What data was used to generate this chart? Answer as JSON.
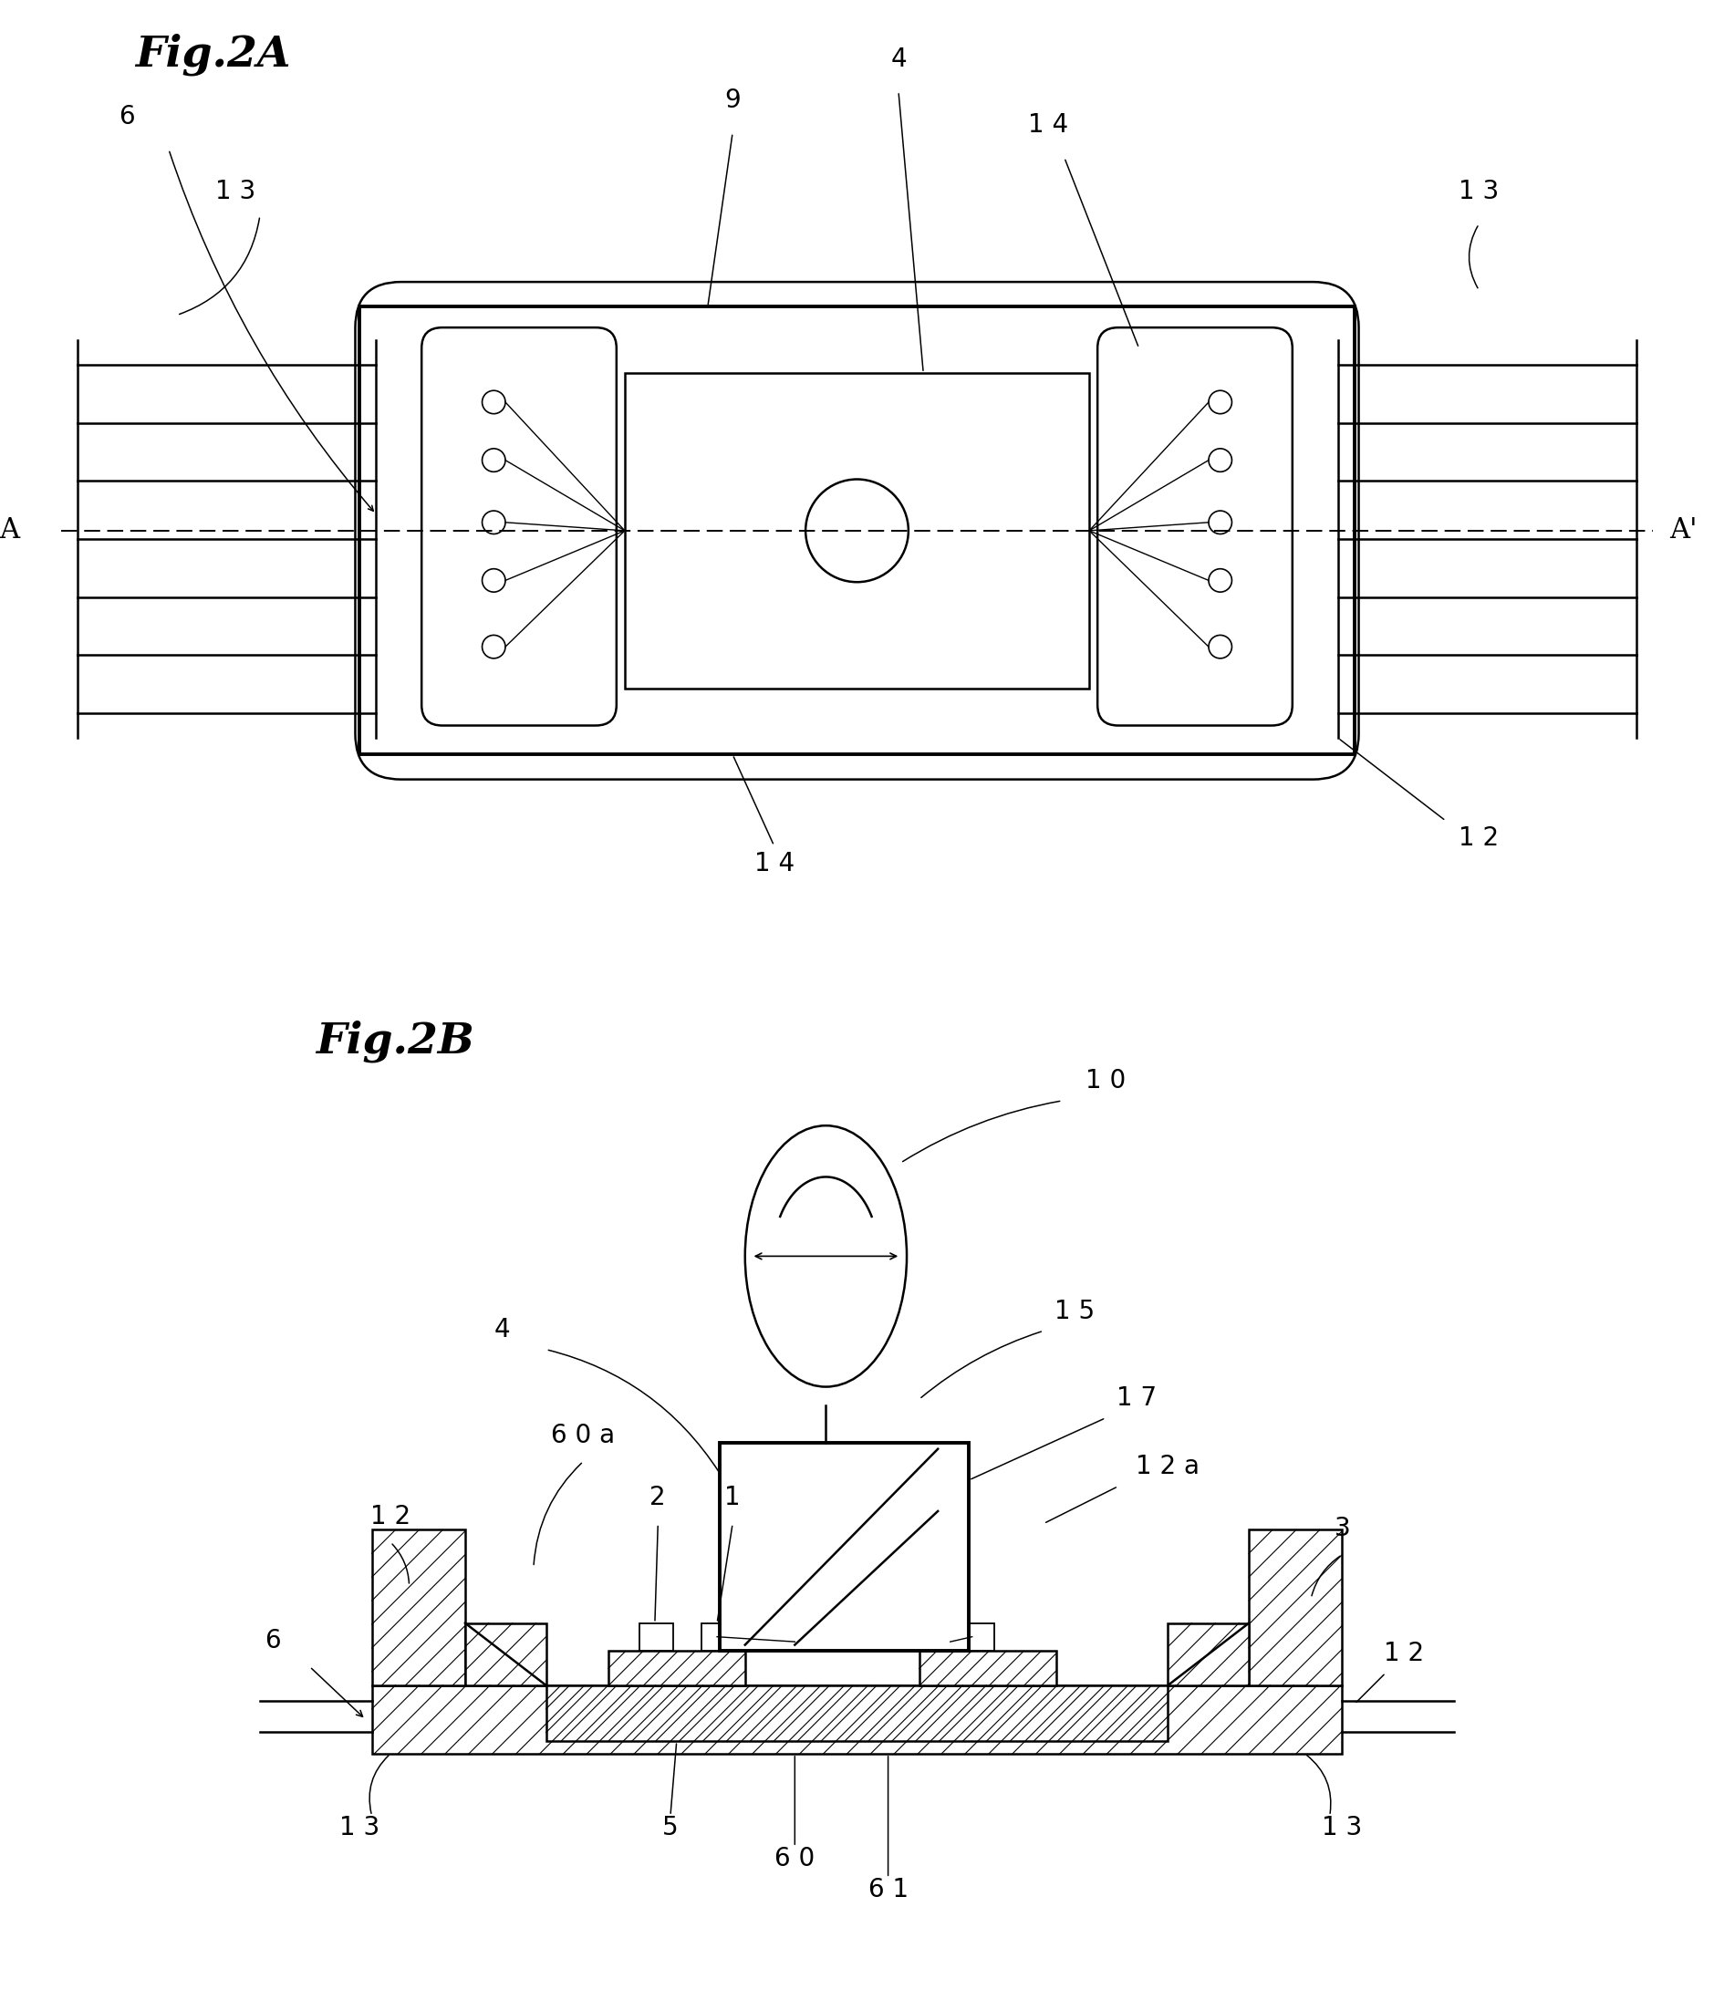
{
  "fig_title_2A": "Fig.2A",
  "fig_title_2B": "Fig.2B",
  "background_color": "#ffffff",
  "line_color": "#000000",
  "label_fontsize": 20,
  "title_fontsize": 34,
  "lw_main": 1.8,
  "lw_thick": 2.8,
  "lw_thin": 1.0
}
